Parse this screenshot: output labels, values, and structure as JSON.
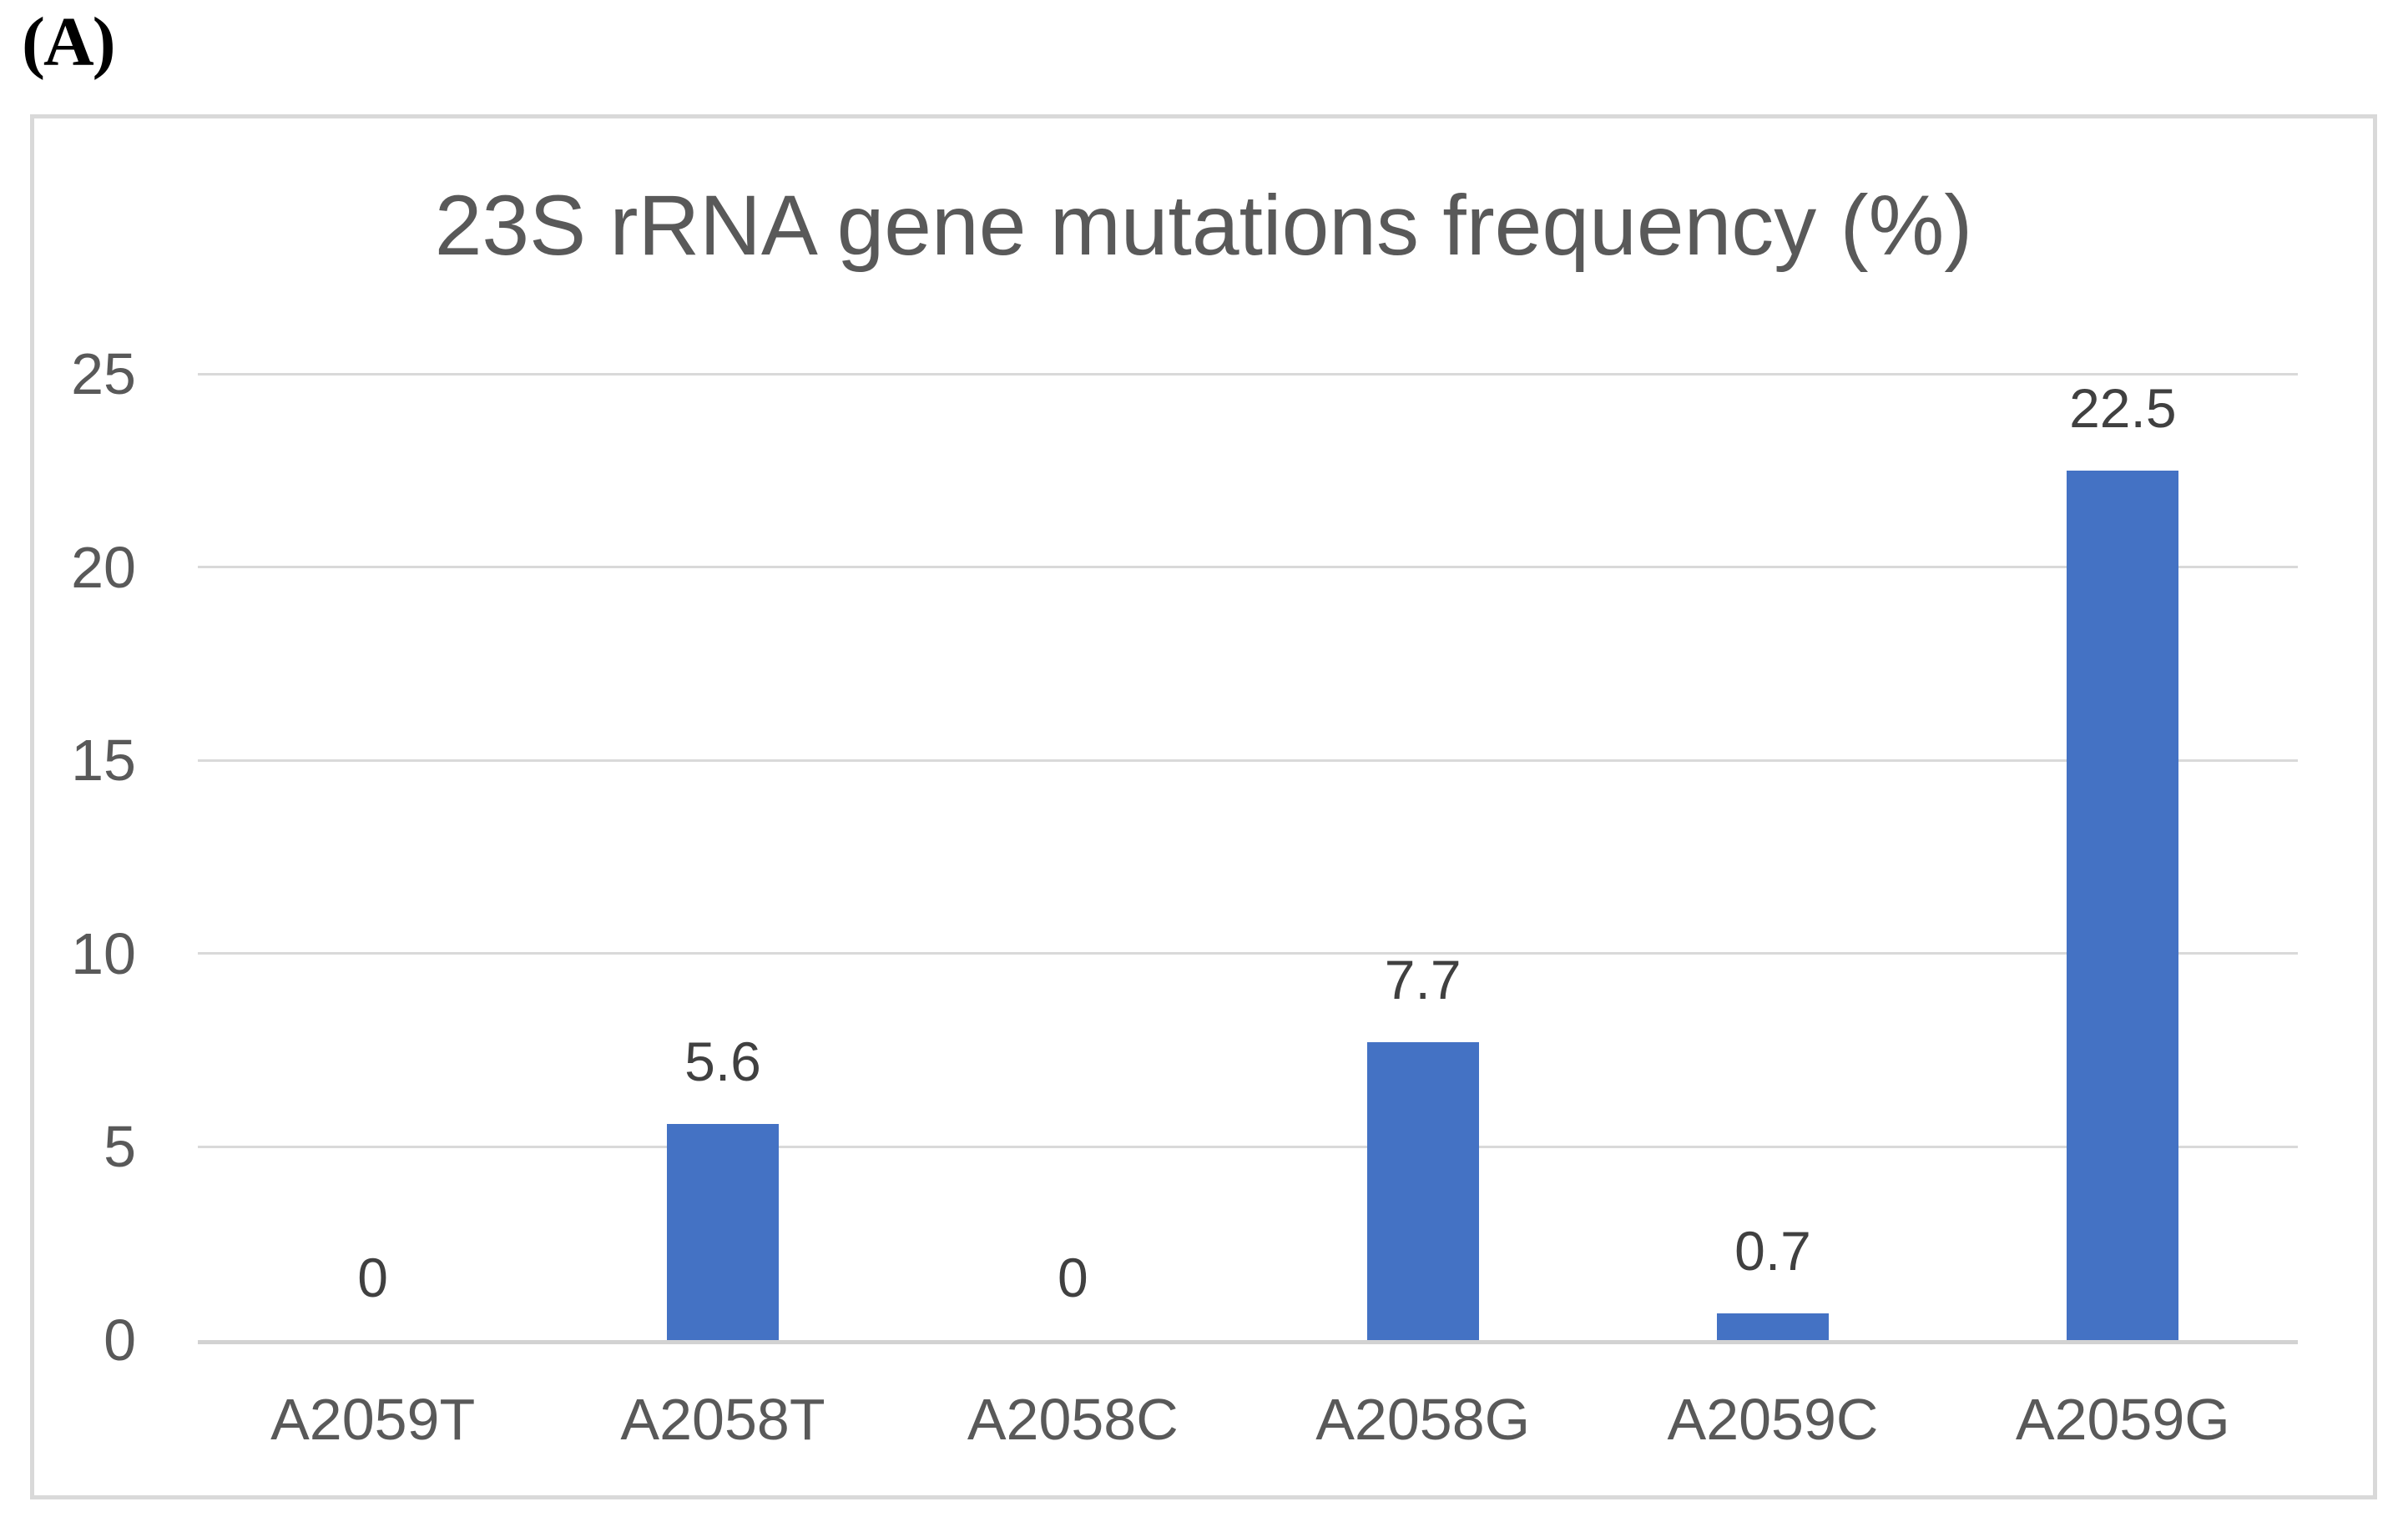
{
  "figure_label": "(A)",
  "chart_data": {
    "type": "bar",
    "title": "23S rRNA gene mutations frequency (%)",
    "categories": [
      "A2059T",
      "A2058T",
      "A2058C",
      "A2058G",
      "A2059C",
      "A2059G"
    ],
    "values": [
      0,
      5.6,
      0,
      7.7,
      0.7,
      22.5
    ],
    "data_labels": [
      "0",
      "5.6",
      "0",
      "7.7",
      "0.7",
      "22.5"
    ],
    "y_ticks": [
      25,
      20,
      15,
      10,
      5,
      0
    ],
    "ylim": [
      0,
      25
    ],
    "xlabel": "",
    "ylabel": "",
    "grid": true,
    "legend": "none",
    "colors": {
      "bar": "#4472c4",
      "title_text": "#595959",
      "axis_text": "#595959",
      "data_label_text": "#404040",
      "gridline": "#d9d9d9",
      "axis_line": "#d2d2d2",
      "chart_border": "#d9d9d9",
      "background": "#ffffff"
    }
  }
}
